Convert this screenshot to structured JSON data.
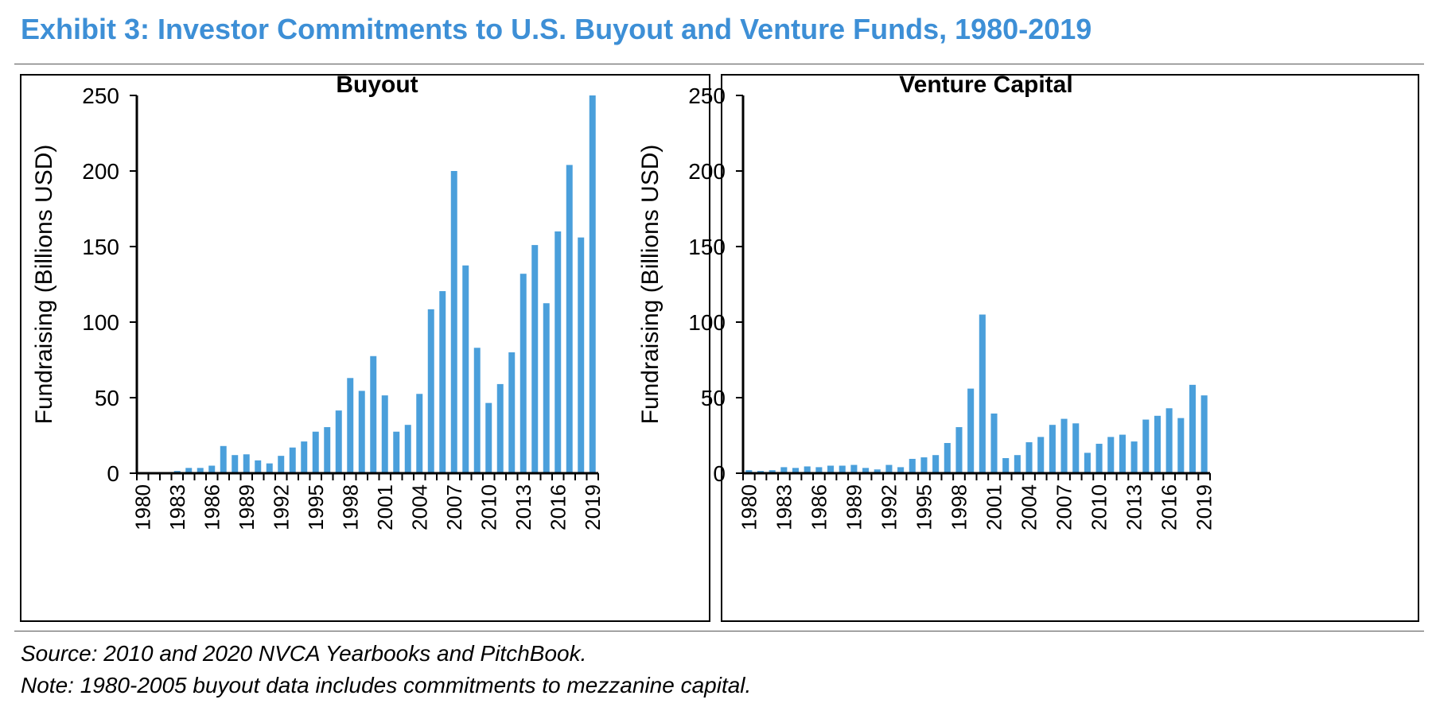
{
  "exhibit": {
    "title": "Exhibit 3: Investor Commitments to U.S. Buyout and Venture Funds, 1980-2019",
    "source": "Source: 2010 and 2020 NVCA Yearbooks and PitchBook.",
    "note": "Note: 1980-2005 buyout data includes commitments to mezzanine capital."
  },
  "colors": {
    "title": "#3d8fd6",
    "bar": "#4a9fdb",
    "axis": "#000000"
  },
  "chart_data": [
    {
      "type": "bar",
      "title": "Buyout",
      "xlabel": "",
      "ylabel": "Fundraising (Billions USD)",
      "ylim": [
        0,
        250
      ],
      "yticks": [
        0,
        50,
        100,
        150,
        200,
        250
      ],
      "grid": false,
      "categories": [
        "1980",
        "1981",
        "1982",
        "1983",
        "1984",
        "1985",
        "1986",
        "1987",
        "1988",
        "1989",
        "1990",
        "1991",
        "1992",
        "1993",
        "1994",
        "1995",
        "1996",
        "1997",
        "1998",
        "1999",
        "2000",
        "2001",
        "2002",
        "2003",
        "2004",
        "2005",
        "2006",
        "2007",
        "2008",
        "2009",
        "2010",
        "2011",
        "2012",
        "2013",
        "2014",
        "2015",
        "2016",
        "2017",
        "2018",
        "2019"
      ],
      "xtick_labels": [
        "1980",
        "1983",
        "1986",
        "1989",
        "1992",
        "1995",
        "1998",
        "2001",
        "2004",
        "2007",
        "2010",
        "2013",
        "2016",
        "2019"
      ],
      "values": [
        0.2,
        0.3,
        0.5,
        1.5,
        3.5,
        3.5,
        5,
        18,
        12,
        12.5,
        8.5,
        6.5,
        11.5,
        17,
        21,
        27.5,
        30.5,
        41.5,
        63,
        54.5,
        77.5,
        51.5,
        27.5,
        32,
        52.5,
        108.5,
        120.5,
        200,
        137.5,
        83,
        46.5,
        59,
        80,
        132,
        151,
        112.5,
        160,
        204,
        156,
        250
      ]
    },
    {
      "type": "bar",
      "title": "Venture Capital",
      "xlabel": "",
      "ylabel": "Fundraising (Billions USD)",
      "ylim": [
        0,
        250
      ],
      "yticks": [
        0,
        50,
        100,
        150,
        200,
        250
      ],
      "grid": false,
      "categories": [
        "1980",
        "1981",
        "1982",
        "1983",
        "1984",
        "1985",
        "1986",
        "1987",
        "1988",
        "1989",
        "1990",
        "1991",
        "1992",
        "1993",
        "1994",
        "1995",
        "1996",
        "1997",
        "1998",
        "1999",
        "2000",
        "2001",
        "2002",
        "2003",
        "2004",
        "2005",
        "2006",
        "2007",
        "2008",
        "2009",
        "2010",
        "2011",
        "2012",
        "2013",
        "2014",
        "2015",
        "2016",
        "2017",
        "2018",
        "2019"
      ],
      "xtick_labels": [
        "1980",
        "1983",
        "1986",
        "1989",
        "1992",
        "1995",
        "1998",
        "2001",
        "2004",
        "2007",
        "2010",
        "2013",
        "2016",
        "2019"
      ],
      "values": [
        2,
        1.5,
        2,
        4,
        3.5,
        4.5,
        4,
        5,
        5,
        5.5,
        3.5,
        2.5,
        5.5,
        4,
        9.5,
        10.5,
        12,
        20,
        30.5,
        56,
        105,
        39.5,
        10,
        12,
        20.5,
        24,
        32,
        36,
        33,
        13.5,
        19.5,
        24,
        25.5,
        21,
        35.5,
        38,
        43,
        36.5,
        58.5,
        51.5
      ]
    }
  ]
}
